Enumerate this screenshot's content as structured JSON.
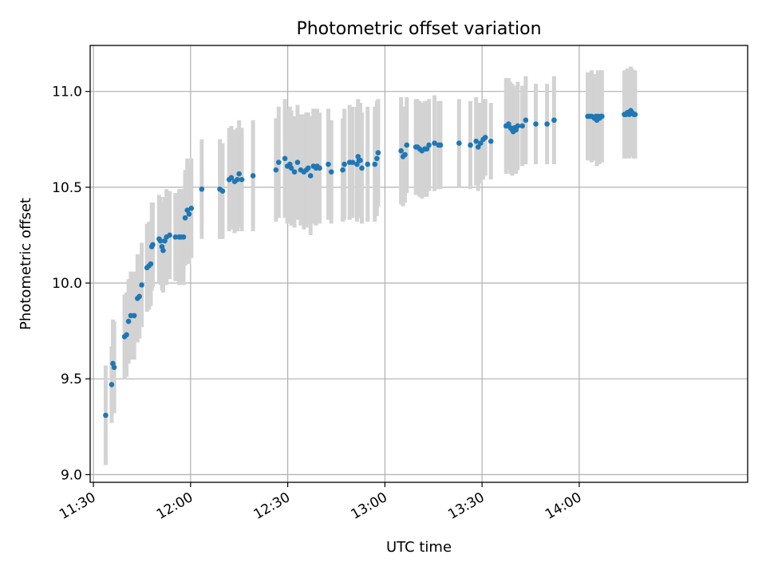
{
  "chart_data": {
    "type": "scatter",
    "title": "Photometric offset variation",
    "xlabel": "UTC time",
    "ylabel": "Photometric offset",
    "x_unit": "UTC time (HH:MM)",
    "xlim": [
      "11:29",
      "14:52"
    ],
    "ylim": [
      8.96,
      11.24
    ],
    "x_ticks": [
      "11:30",
      "12:00",
      "12:30",
      "13:00",
      "13:30",
      "14:00"
    ],
    "y_ticks": [
      "9.0",
      "9.5",
      "10.0",
      "10.5",
      "11.0"
    ],
    "grid": true,
    "legend": "none",
    "colors": {
      "point": "#1f77b4",
      "errorbar": "#d3d3d3"
    },
    "series": [
      {
        "x": [
          "11:33:47",
          "11:35:38",
          "11:36:01",
          "11:36:25",
          "11:39:37",
          "11:40:14",
          "11:40:51",
          "11:41:33",
          "11:42:36",
          "11:43:37",
          "11:44:12",
          "11:44:55",
          "11:46:32",
          "11:47:09",
          "11:47:43",
          "11:48:01",
          "11:48:20",
          "11:50:17",
          "11:50:44",
          "11:51:11",
          "11:51:32",
          "11:52:02",
          "11:52:34",
          "11:53:33",
          "11:55:19",
          "11:56:27",
          "11:57:02",
          "11:57:50",
          "11:58:20",
          "11:58:59",
          "11:59:32",
          "12:00:14",
          "12:03:27",
          "12:09:03",
          "12:09:53",
          "12:11:55",
          "12:12:35",
          "12:13:36",
          "12:14:26",
          "12:14:59",
          "12:15:49",
          "12:19:17",
          "12:26:22",
          "12:27:12",
          "12:29:08",
          "12:29:53",
          "12:30:40",
          "12:31:05",
          "12:32:04",
          "12:33:02",
          "12:34:01",
          "12:35:00",
          "12:35:45",
          "12:36:19",
          "12:37:03",
          "12:37:55",
          "12:38:43",
          "12:39:05",
          "12:39:50",
          "12:42:32",
          "12:43:27",
          "12:46:59",
          "12:47:30",
          "12:49:07",
          "12:50:02",
          "12:51:23",
          "12:51:43",
          "12:52:01",
          "12:52:24",
          "12:52:53",
          "12:54:40",
          "12:56:53",
          "12:57:32",
          "12:57:55",
          "13:05:00",
          "13:05:36",
          "13:06:11",
          "13:06:45",
          "13:09:33",
          "13:10:01",
          "13:10:44",
          "13:11:27",
          "13:12:17",
          "13:12:57",
          "13:13:36",
          "13:15:19",
          "13:16:36",
          "13:17:09",
          "13:22:54",
          "13:26:24",
          "13:28:10",
          "13:28:48",
          "13:29:33",
          "13:30:21",
          "13:31:00",
          "13:32:44",
          "13:37:25",
          "13:38:11",
          "13:38:46",
          "13:39:17",
          "13:39:38",
          "13:40:02",
          "13:40:29",
          "13:41:01",
          "13:42:26",
          "13:43:29",
          "13:46:36",
          "13:50:04",
          "13:52:14",
          "14:02:37",
          "14:03:19",
          "14:03:50",
          "14:04:40",
          "14:05:05",
          "14:05:26",
          "14:05:46",
          "14:06:14",
          "14:06:37",
          "14:07:01",
          "14:13:56",
          "14:14:27",
          "14:14:52",
          "14:15:28",
          "14:15:54",
          "14:16:19",
          "14:16:51",
          "14:17:15"
        ],
        "y": [
          9.31,
          9.47,
          9.58,
          9.56,
          9.72,
          9.73,
          9.8,
          9.83,
          9.83,
          9.92,
          9.93,
          9.99,
          10.08,
          10.09,
          10.1,
          10.19,
          10.2,
          10.23,
          10.22,
          10.19,
          10.17,
          10.22,
          10.24,
          10.25,
          10.24,
          10.24,
          10.24,
          10.24,
          10.34,
          10.38,
          10.36,
          10.39,
          10.49,
          10.49,
          10.48,
          10.54,
          10.55,
          10.53,
          10.54,
          10.57,
          10.54,
          10.56,
          10.59,
          10.63,
          10.65,
          10.61,
          10.62,
          10.6,
          10.58,
          10.63,
          10.59,
          10.58,
          10.59,
          10.6,
          10.56,
          10.61,
          10.6,
          10.61,
          10.6,
          10.62,
          10.58,
          10.59,
          10.62,
          10.63,
          10.63,
          10.62,
          10.66,
          10.64,
          10.64,
          10.6,
          10.62,
          10.62,
          10.65,
          10.68,
          10.69,
          10.66,
          10.67,
          10.72,
          10.71,
          10.71,
          10.7,
          10.69,
          10.7,
          10.7,
          10.72,
          10.73,
          10.72,
          10.72,
          10.73,
          10.72,
          10.74,
          10.71,
          10.73,
          10.75,
          10.76,
          10.74,
          10.82,
          10.83,
          10.81,
          10.8,
          10.79,
          10.81,
          10.8,
          10.82,
          10.82,
          10.85,
          10.83,
          10.83,
          10.85,
          10.87,
          10.87,
          10.87,
          10.86,
          10.87,
          10.85,
          10.87,
          10.86,
          10.87,
          10.87,
          10.88,
          10.88,
          10.89,
          10.88,
          10.9,
          10.89,
          10.88,
          10.88
        ],
        "yerr": [
          0.26,
          0.2,
          0.23,
          0.24,
          0.22,
          0.22,
          0.22,
          0.23,
          0.23,
          0.23,
          0.22,
          0.22,
          0.23,
          0.23,
          0.22,
          0.23,
          0.22,
          0.23,
          0.23,
          0.23,
          0.22,
          0.23,
          0.25,
          0.23,
          0.23,
          0.25,
          0.25,
          0.25,
          0.25,
          0.27,
          0.26,
          0.26,
          0.26,
          0.26,
          0.25,
          0.27,
          0.27,
          0.27,
          0.27,
          0.28,
          0.27,
          0.29,
          0.27,
          0.29,
          0.31,
          0.3,
          0.3,
          0.3,
          0.29,
          0.3,
          0.29,
          0.3,
          0.3,
          0.29,
          0.31,
          0.3,
          0.3,
          0.3,
          0.29,
          0.29,
          0.27,
          0.27,
          0.29,
          0.3,
          0.29,
          0.3,
          0.3,
          0.3,
          0.3,
          0.29,
          0.3,
          0.3,
          0.3,
          0.28,
          0.28,
          0.26,
          0.25,
          0.25,
          0.25,
          0.25,
          0.25,
          0.25,
          0.25,
          0.25,
          0.24,
          0.25,
          0.23,
          0.23,
          0.23,
          0.23,
          0.23,
          0.23,
          0.21,
          0.21,
          0.2,
          0.2,
          0.25,
          0.24,
          0.24,
          0.24,
          0.22,
          0.22,
          0.23,
          0.23,
          0.21,
          0.23,
          0.21,
          0.21,
          0.23,
          0.23,
          0.22,
          0.24,
          0.22,
          0.22,
          0.24,
          0.24,
          0.24,
          0.24,
          0.24,
          0.23,
          0.23,
          0.23,
          0.23,
          0.23,
          0.23,
          0.23,
          0.23
        ]
      }
    ]
  }
}
